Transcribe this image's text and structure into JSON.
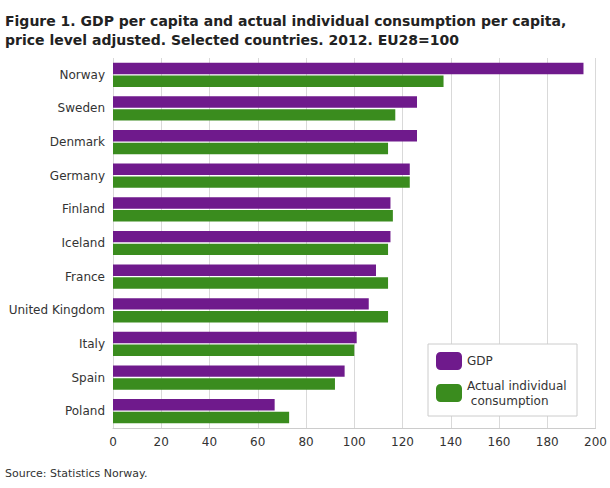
{
  "chart_data": {
    "type": "bar",
    "orientation": "horizontal",
    "title": "Figure 1. GDP per capita and actual individual consumption per capita,\nprice level adjusted. Selected countries. 2012. EU28=100",
    "source": "Source: Statistics Norway.",
    "categories": [
      "Norway",
      "Sweden",
      "Denmark",
      "Germany",
      "Finland",
      "Iceland",
      "France",
      "United Kingdom",
      "Italy",
      "Spain",
      "Poland"
    ],
    "series": [
      {
        "name": "GDP",
        "color": "#6f1a8c",
        "values": [
          195,
          126,
          126,
          123,
          115,
          115,
          109,
          106,
          101,
          96,
          67
        ]
      },
      {
        "name": "Actual individual consumption",
        "color": "#3a8c1e",
        "values": [
          137,
          117,
          114,
          123,
          116,
          114,
          114,
          114,
          100,
          92,
          73
        ]
      }
    ],
    "xlim": [
      0,
      200
    ],
    "xticks": [
      0,
      20,
      40,
      60,
      80,
      100,
      120,
      140,
      160,
      180,
      200
    ],
    "grid": true,
    "legend": "lower right"
  }
}
